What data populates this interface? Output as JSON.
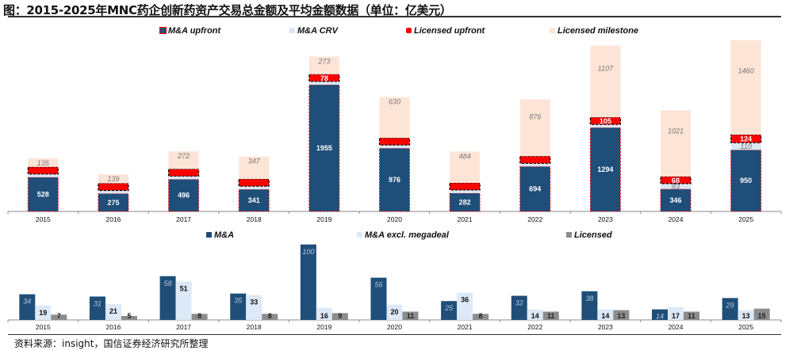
{
  "header": {
    "title": "图：2015-2025年MNC药企创新药资产交易总金额及平均金额数据（单位：亿美元）",
    "source": "资料来源：insight，国信证券经济研究所整理"
  },
  "colors": {
    "ma": "#1F4E79",
    "crv": "#DCE6F2",
    "lic_upfront": "#FF0000",
    "lic_milestone": "#FCE4D6",
    "ma_excl": "#DDE9F6",
    "licensed": "#8C8C8C"
  },
  "chart_data": [
    {
      "type": "bar",
      "stacked": true,
      "title": "MNC innovative drug asset deal total value",
      "categories": [
        "2015",
        "2016",
        "2017",
        "2018",
        "2019",
        "2020",
        "2021",
        "2022",
        "2023",
        "2024",
        "2025"
      ],
      "legend_position": "top",
      "grid": false,
      "ylim": [
        0,
        2750
      ],
      "series": [
        {
          "name": "M&A upfront",
          "values": [
            528,
            275,
            496,
            341,
            1955,
            976,
            282,
            694,
            1294,
            346,
            950
          ]
        },
        {
          "name": "M&A CRV",
          "values": [
            30,
            15,
            20,
            10,
            52,
            30,
            47,
            40,
            41,
            83,
            110
          ]
        },
        {
          "name": "Licensed upfront",
          "values": [
            24,
            17,
            34,
            20,
            78,
            64,
            45,
            51,
            105,
            68,
            124
          ]
        },
        {
          "name": "Licensed milestone",
          "values": [
            135,
            139,
            272,
            347,
            273,
            630,
            484,
            876,
            1107,
            1021,
            1460
          ]
        }
      ],
      "labels_legible": {
        "M&A upfront": [
          true,
          true,
          true,
          true,
          true,
          true,
          true,
          true,
          true,
          true,
          true
        ],
        "M&A CRV": [
          false,
          false,
          false,
          false,
          false,
          false,
          false,
          false,
          false,
          true,
          true
        ],
        "Licensed upfront": [
          false,
          false,
          false,
          false,
          true,
          false,
          false,
          false,
          true,
          true,
          true
        ],
        "Licensed milestone": [
          true,
          true,
          true,
          true,
          true,
          true,
          true,
          true,
          true,
          true,
          true
        ]
      }
    },
    {
      "type": "bar",
      "stacked": false,
      "title": "Average deal value",
      "categories": [
        "2015",
        "2016",
        "2017",
        "2018",
        "2019",
        "2020",
        "2021",
        "2022",
        "2023",
        "2024",
        "2025"
      ],
      "legend_position": "top",
      "grid": false,
      "ylim": [
        0,
        105
      ],
      "series": [
        {
          "name": "M&A",
          "values": [
            34,
            31,
            58,
            35,
            100,
            56,
            25,
            32,
            38,
            14,
            29
          ]
        },
        {
          "name": "M&A excl. megadeal",
          "values": [
            19,
            21,
            51,
            33,
            16,
            20,
            36,
            14,
            14,
            17,
            13
          ]
        },
        {
          "name": "Licensed",
          "values": [
            7,
            5,
            8,
            8,
            9,
            11,
            8,
            11,
            13,
            11,
            15
          ]
        }
      ]
    }
  ]
}
